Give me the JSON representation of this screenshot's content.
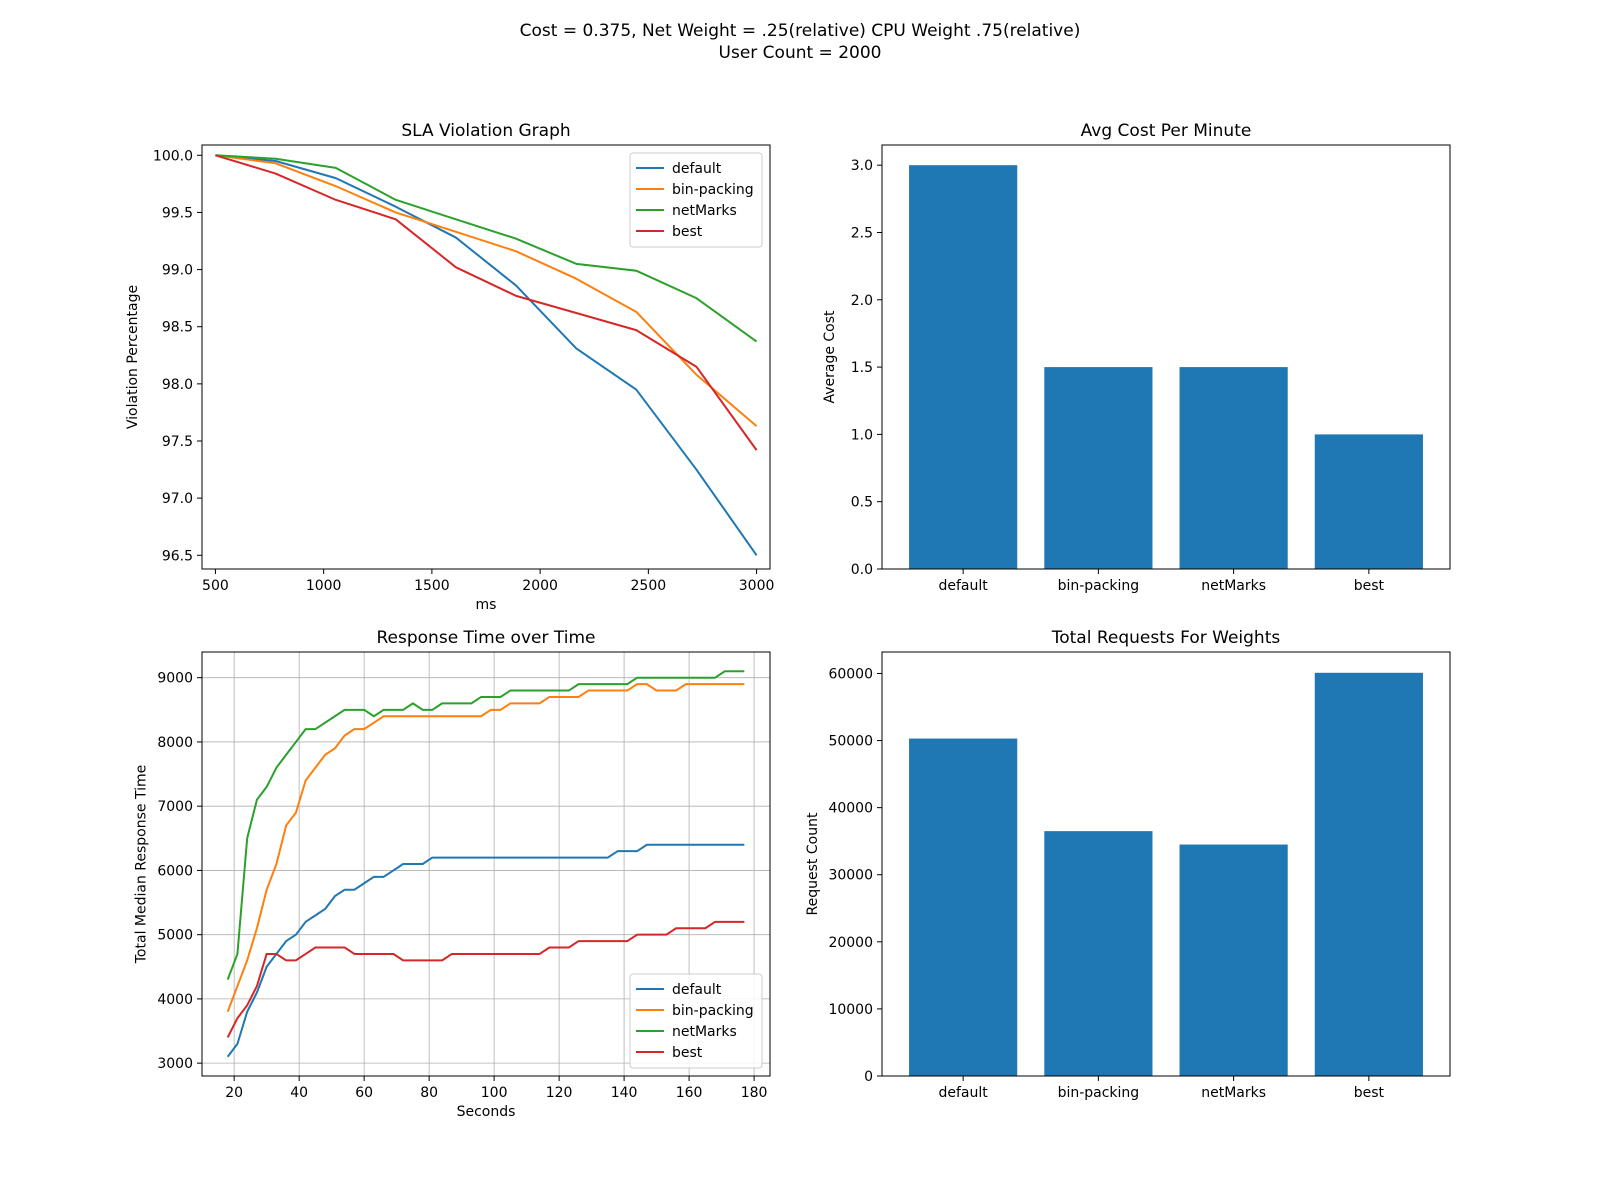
{
  "figure": {
    "suptitle_line1": "Cost = 0.375, Net Weight = .25(relative) CPU Weight .75(relative)",
    "suptitle_line2": "User Count = 2000"
  },
  "colors": {
    "default": "#1f77b4",
    "bin-packing": "#ff7f0e",
    "netMarks": "#2ca02c",
    "best": "#d62728",
    "bar": "#1f77b4",
    "grid": "#b0b0b0"
  },
  "chart_data": [
    {
      "type": "line",
      "title": "SLA Violation Graph",
      "xlabel": "ms",
      "ylabel": "Violation Percentage",
      "xlim": [
        438,
        3062
      ],
      "ylim": [
        96.38,
        100.09
      ],
      "xticks": [
        500,
        1000,
        1500,
        2000,
        2500,
        3000
      ],
      "yticks": [
        96.5,
        97.0,
        97.5,
        98.0,
        98.5,
        99.0,
        99.5,
        100.0
      ],
      "ytick_decimals": 1,
      "grid": false,
      "legend": "top-right",
      "x": [
        500,
        778,
        1056,
        1333,
        1611,
        1889,
        2167,
        2444,
        2722,
        3000
      ],
      "series": [
        {
          "name": "default",
          "values": [
            100.0,
            99.95,
            99.8,
            99.55,
            99.28,
            98.86,
            98.31,
            97.95,
            97.25,
            96.5
          ]
        },
        {
          "name": "bin-packing",
          "values": [
            100.0,
            99.93,
            99.73,
            99.5,
            99.33,
            99.16,
            98.92,
            98.63,
            98.08,
            97.63
          ]
        },
        {
          "name": "netMarks",
          "values": [
            100.0,
            99.97,
            99.89,
            99.61,
            99.44,
            99.27,
            99.05,
            98.99,
            98.75,
            98.37
          ]
        },
        {
          "name": "best",
          "values": [
            100.0,
            99.84,
            99.61,
            99.44,
            99.02,
            98.77,
            98.62,
            98.47,
            98.15,
            97.42
          ]
        }
      ]
    },
    {
      "type": "bar",
      "title": "Avg Cost Per Minute",
      "xlabel": "",
      "ylabel": "Average Cost",
      "ylim": [
        0,
        3.15
      ],
      "yticks": [
        0.0,
        0.5,
        1.0,
        1.5,
        2.0,
        2.5,
        3.0
      ],
      "ytick_decimals": 1,
      "grid": false,
      "categories": [
        "default",
        "bin-packing",
        "netMarks",
        "best"
      ],
      "values": [
        3.0,
        1.5,
        1.5,
        1.0
      ]
    },
    {
      "type": "line",
      "title": "Response Time over Time",
      "xlabel": "Seconds",
      "ylabel": "Total Median Response Time",
      "xlim": [
        10.1,
        184.9
      ],
      "ylim": [
        2800,
        9400
      ],
      "xticks": [
        20,
        40,
        60,
        80,
        100,
        120,
        140,
        160,
        180
      ],
      "yticks": [
        3000,
        4000,
        5000,
        6000,
        7000,
        8000,
        9000
      ],
      "ytick_decimals": 0,
      "grid": true,
      "legend": "lower-right",
      "x": [
        18,
        21,
        24,
        27,
        30,
        33,
        36,
        39,
        42,
        45,
        48,
        51,
        54,
        57,
        60,
        63,
        66,
        69,
        72,
        75,
        78,
        81,
        84,
        87,
        90,
        93,
        96,
        99,
        102,
        105,
        108,
        111,
        114,
        117,
        120,
        123,
        126,
        129,
        132,
        135,
        138,
        141,
        144,
        147,
        150,
        153,
        156,
        159,
        162,
        165,
        168,
        171,
        174,
        177
      ],
      "series": [
        {
          "name": "default",
          "values": [
            3100,
            3300,
            3800,
            4100,
            4500,
            4700,
            4900,
            5000,
            5200,
            5300,
            5400,
            5600,
            5700,
            5700,
            5800,
            5900,
            5900,
            6000,
            6100,
            6100,
            6100,
            6200,
            6200,
            6200,
            6200,
            6200,
            6200,
            6200,
            6200,
            6200,
            6200,
            6200,
            6200,
            6200,
            6200,
            6200,
            6200,
            6200,
            6200,
            6200,
            6300,
            6300,
            6300,
            6400,
            6400,
            6400,
            6400,
            6400,
            6400,
            6400,
            6400,
            6400,
            6400,
            6400
          ]
        },
        {
          "name": "bin-packing",
          "values": [
            3800,
            4200,
            4600,
            5100,
            5700,
            6100,
            6700,
            6900,
            7400,
            7600,
            7800,
            7900,
            8100,
            8200,
            8200,
            8300,
            8400,
            8400,
            8400,
            8400,
            8400,
            8400,
            8400,
            8400,
            8400,
            8400,
            8400,
            8500,
            8500,
            8600,
            8600,
            8600,
            8600,
            8700,
            8700,
            8700,
            8700,
            8800,
            8800,
            8800,
            8800,
            8800,
            8900,
            8900,
            8800,
            8800,
            8800,
            8900,
            8900,
            8900,
            8900,
            8900,
            8900,
            8900
          ]
        },
        {
          "name": "netMarks",
          "values": [
            4300,
            4700,
            6500,
            7100,
            7300,
            7600,
            7800,
            8000,
            8200,
            8200,
            8300,
            8400,
            8500,
            8500,
            8500,
            8400,
            8500,
            8500,
            8500,
            8600,
            8500,
            8500,
            8600,
            8600,
            8600,
            8600,
            8700,
            8700,
            8700,
            8800,
            8800,
            8800,
            8800,
            8800,
            8800,
            8800,
            8900,
            8900,
            8900,
            8900,
            8900,
            8900,
            9000,
            9000,
            9000,
            9000,
            9000,
            9000,
            9000,
            9000,
            9000,
            9100,
            9100,
            9100
          ]
        },
        {
          "name": "best",
          "values": [
            3400,
            3700,
            3900,
            4200,
            4700,
            4700,
            4600,
            4600,
            4700,
            4800,
            4800,
            4800,
            4800,
            4700,
            4700,
            4700,
            4700,
            4700,
            4600,
            4600,
            4600,
            4600,
            4600,
            4700,
            4700,
            4700,
            4700,
            4700,
            4700,
            4700,
            4700,
            4700,
            4700,
            4800,
            4800,
            4800,
            4900,
            4900,
            4900,
            4900,
            4900,
            4900,
            5000,
            5000,
            5000,
            5000,
            5100,
            5100,
            5100,
            5100,
            5200,
            5200,
            5200,
            5200
          ]
        }
      ]
    },
    {
      "type": "bar",
      "title": "Total Requests For Weights",
      "xlabel": "",
      "ylabel": "Request Count",
      "ylim": [
        0,
        63200
      ],
      "yticks": [
        0,
        10000,
        20000,
        30000,
        40000,
        50000,
        60000
      ],
      "ytick_decimals": 0,
      "grid": false,
      "categories": [
        "default",
        "bin-packing",
        "netMarks",
        "best"
      ],
      "values": [
        50300,
        36500,
        34500,
        60100
      ]
    }
  ]
}
